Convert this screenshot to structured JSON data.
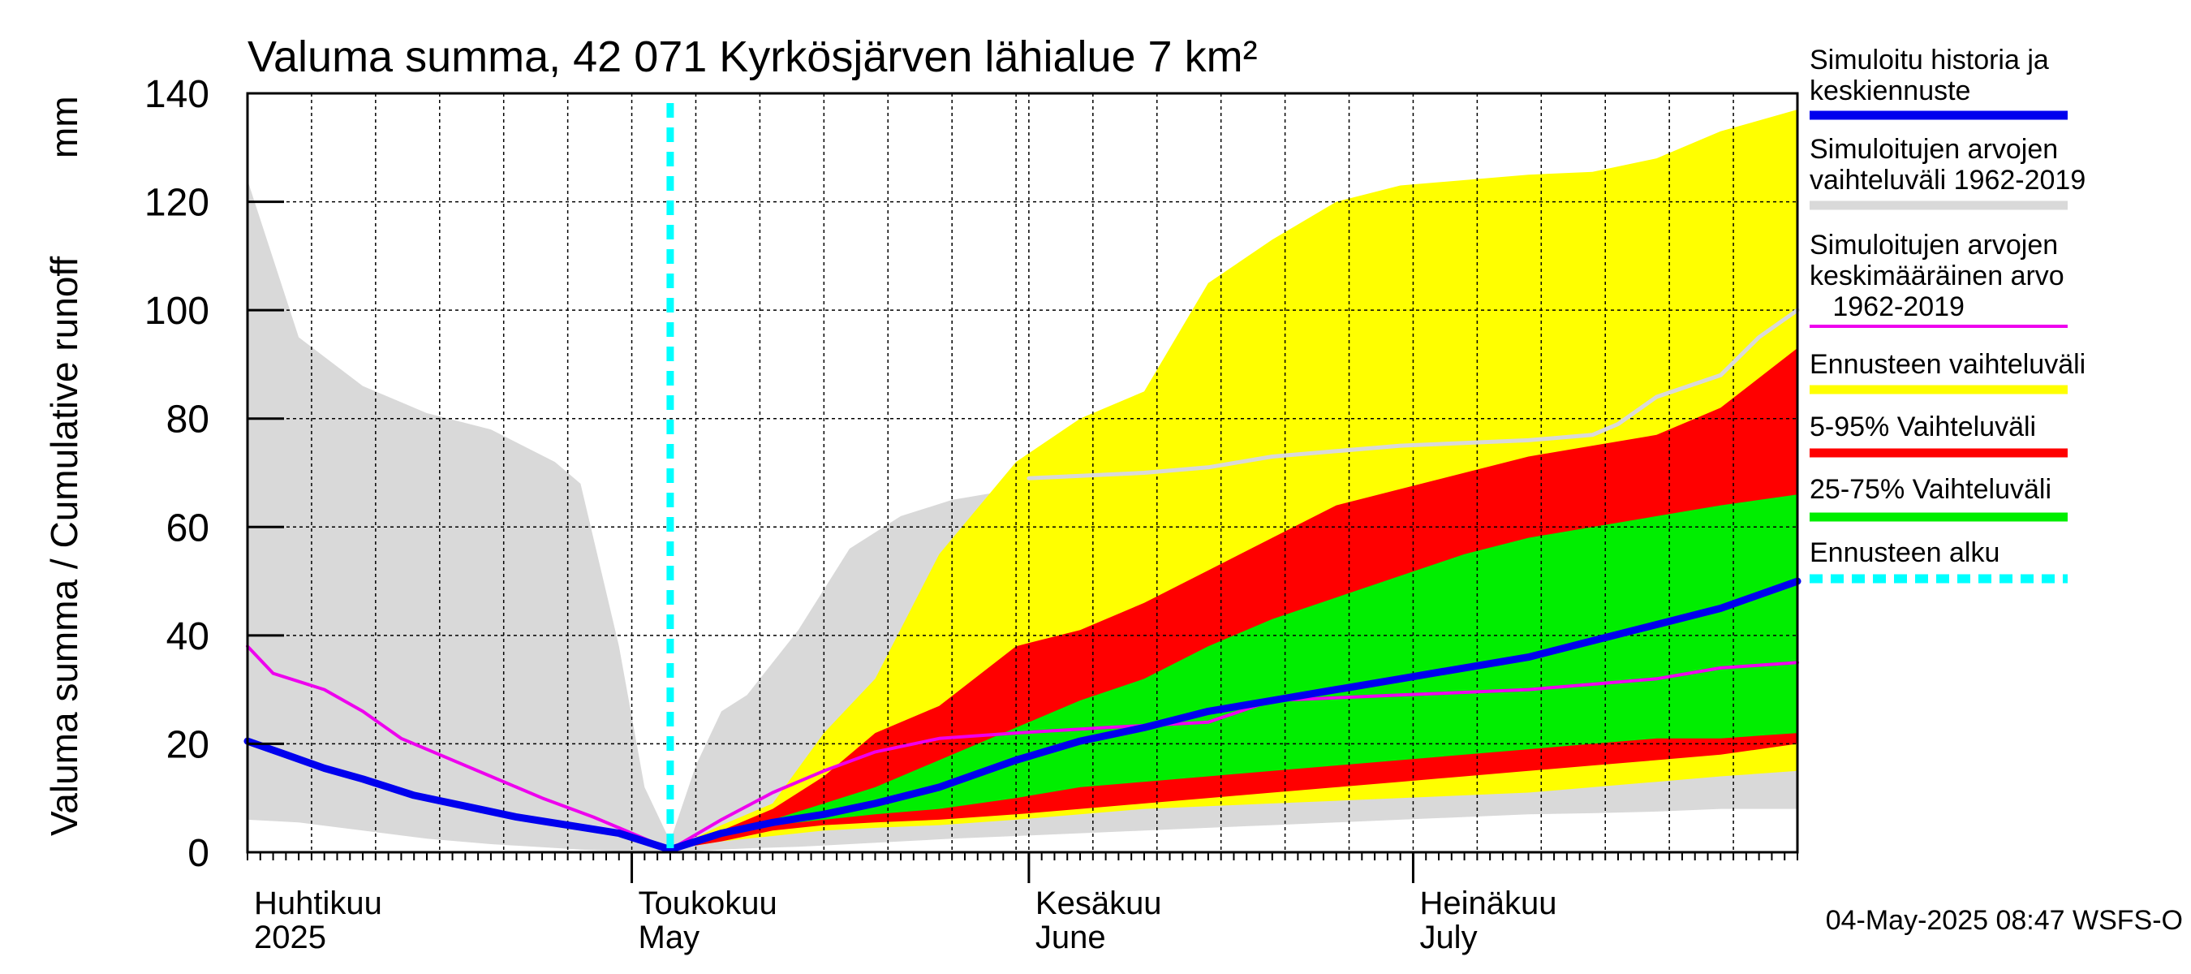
{
  "chart_data": {
    "type": "area",
    "title": "Valuma summa, 42 071 Kyrkösjärven lähialue 7 km²",
    "ylabel": "Valuma summa / Cumulative runoff",
    "yunit": "mm",
    "ylim": [
      0,
      140
    ],
    "yticks": [
      0,
      20,
      40,
      60,
      80,
      100,
      120,
      140
    ],
    "xlim": [
      "2025-04-01",
      "2025-07-31"
    ],
    "grid": true,
    "legend_position": "right",
    "x_axis_year": "2025",
    "months": [
      {
        "fi": "Huhtikuu",
        "en": "2025",
        "start": "2025-04-01"
      },
      {
        "fi": "Toukokuu",
        "en": "May",
        "start": "2025-05-01"
      },
      {
        "fi": "Kesäkuu",
        "en": "June",
        "start": "2025-06-01"
      },
      {
        "fi": "Heinäkuu",
        "en": "July",
        "start": "2025-07-01"
      }
    ],
    "forecast_start": "2025-05-04",
    "footer": "04-May-2025 08:47 WSFS-O",
    "colors": {
      "history_range": "#d9d9d9",
      "mean": "#ee00ee",
      "forecast_range": "#ffff00",
      "p5_95": "#ff0000",
      "p25_75": "#00ee00",
      "median": "#0000ee",
      "mean_continuation": "#d9d9d9",
      "forecast_start": "#00ffff"
    },
    "legend": [
      {
        "label": "Simuloitu historia ja\nkeskiennuste",
        "color": "#0000ee",
        "style": "solid"
      },
      {
        "label": "Simuloitujen arvojen\nvaihteluväli 1962-2019",
        "color": "#d9d9d9",
        "style": "solid"
      },
      {
        "label": "Simuloitujen arvojen\nkeskimääräinen arvo\n   1962-2019",
        "color": "#ee00ee",
        "style": "thin"
      },
      {
        "label": "Ennusteen vaihteluväli",
        "color": "#ffff00",
        "style": "solid"
      },
      {
        "label": "5-95% Vaihteluväli",
        "color": "#ff0000",
        "style": "solid"
      },
      {
        "label": "25-75% Vaihteluväli",
        "color": "#00ee00",
        "style": "solid"
      },
      {
        "label": "Ennusteen alku",
        "color": "#00ffff",
        "style": "dashed"
      }
    ],
    "series": {
      "history_range": {
        "x": [
          "2025-04-01",
          "2025-04-05",
          "2025-04-10",
          "2025-04-15",
          "2025-04-20",
          "2025-04-25",
          "2025-04-27",
          "2025-04-30",
          "2025-05-02",
          "2025-05-04",
          "2025-05-06",
          "2025-05-08",
          "2025-05-10",
          "2025-05-14",
          "2025-05-18",
          "2025-05-22",
          "2025-05-26",
          "2025-05-31",
          "2025-06-05",
          "2025-06-10",
          "2025-06-15",
          "2025-06-20",
          "2025-06-25",
          "2025-06-30",
          "2025-07-05",
          "2025-07-10",
          "2025-07-15",
          "2025-07-20",
          "2025-07-25",
          "2025-07-31"
        ],
        "upper": [
          124,
          95,
          86,
          81,
          78,
          72,
          68,
          38,
          12,
          2,
          16,
          26,
          29,
          41,
          56,
          62,
          65,
          67,
          68,
          69,
          70,
          71,
          72,
          73,
          74,
          75,
          75.5,
          76,
          77,
          78
        ],
        "lower": [
          6,
          5.5,
          4,
          2.5,
          1.5,
          0.8,
          0.5,
          0.2,
          0.1,
          0,
          0.2,
          0.5,
          0.7,
          1,
          1.5,
          2,
          2.5,
          3,
          3.5,
          4,
          4.5,
          5,
          5.5,
          6,
          6.5,
          7,
          7.2,
          7.5,
          8,
          8
        ]
      },
      "mean": {
        "x": [
          "2025-04-01",
          "2025-04-03",
          "2025-04-07",
          "2025-04-10",
          "2025-04-13",
          "2025-04-16",
          "2025-04-20",
          "2025-04-24",
          "2025-04-28",
          "2025-05-01",
          "2025-05-04",
          "2025-05-08",
          "2025-05-12",
          "2025-05-16",
          "2025-05-20",
          "2025-05-25",
          "2025-05-31",
          "2025-06-07",
          "2025-06-15",
          "2025-06-20",
          "2025-06-25",
          "2025-06-30",
          "2025-07-05",
          "2025-07-10",
          "2025-07-15",
          "2025-07-20",
          "2025-07-25",
          "2025-07-31"
        ],
        "y": [
          38,
          33,
          30,
          26,
          21,
          18,
          14,
          10,
          6.5,
          3.5,
          0.5,
          6,
          11,
          15,
          18.5,
          21,
          22,
          23,
          24,
          28,
          28.5,
          29,
          29.5,
          30,
          31,
          32,
          34,
          35
        ]
      },
      "mean_continuation": {
        "x": [
          "2025-06-01",
          "2025-06-10",
          "2025-06-15",
          "2025-06-20",
          "2025-06-25",
          "2025-06-30",
          "2025-07-05",
          "2025-07-10",
          "2025-07-15",
          "2025-07-17",
          "2025-07-20",
          "2025-07-25",
          "2025-07-28",
          "2025-07-31"
        ],
        "y": [
          69,
          70,
          71,
          73,
          74,
          75,
          75.5,
          76,
          77,
          79,
          84,
          88,
          95,
          100
        ]
      },
      "forecast_range": {
        "x": [
          "2025-05-04",
          "2025-05-08",
          "2025-05-12",
          "2025-05-16",
          "2025-05-20",
          "2025-05-25",
          "2025-05-31",
          "2025-06-05",
          "2025-06-10",
          "2025-06-15",
          "2025-06-20",
          "2025-06-25",
          "2025-06-30",
          "2025-07-05",
          "2025-07-10",
          "2025-07-15",
          "2025-07-20",
          "2025-07-25",
          "2025-07-31"
        ],
        "upper": [
          0.5,
          5,
          9,
          22,
          32,
          55,
          72,
          80,
          85,
          105,
          113,
          120,
          123,
          124,
          125,
          125.5,
          128,
          133,
          137
        ],
        "lower": [
          0.5,
          2,
          3,
          4,
          4.5,
          5,
          6,
          7,
          8,
          8.5,
          9,
          9.5,
          10,
          10.5,
          11,
          12,
          13,
          14,
          15
        ]
      },
      "p5_95": {
        "x": [
          "2025-05-04",
          "2025-05-08",
          "2025-05-12",
          "2025-05-16",
          "2025-05-20",
          "2025-05-25",
          "2025-05-31",
          "2025-06-05",
          "2025-06-10",
          "2025-06-15",
          "2025-06-20",
          "2025-06-25",
          "2025-06-30",
          "2025-07-05",
          "2025-07-10",
          "2025-07-15",
          "2025-07-20",
          "2025-07-25",
          "2025-07-31"
        ],
        "upper": [
          0.5,
          4,
          8,
          14,
          22,
          27,
          38,
          41,
          46,
          52,
          58,
          64,
          67,
          70,
          73,
          75,
          77,
          82,
          93
        ],
        "lower": [
          0.5,
          2,
          4,
          5,
          5.5,
          6,
          7,
          8,
          9,
          10,
          11,
          12,
          13,
          14,
          15,
          16,
          17,
          18,
          20
        ]
      },
      "p25_75": {
        "x": [
          "2025-05-04",
          "2025-05-08",
          "2025-05-12",
          "2025-05-16",
          "2025-05-20",
          "2025-05-25",
          "2025-05-31",
          "2025-06-05",
          "2025-06-10",
          "2025-06-15",
          "2025-06-20",
          "2025-06-25",
          "2025-06-30",
          "2025-07-05",
          "2025-07-10",
          "2025-07-15",
          "2025-07-20",
          "2025-07-25",
          "2025-07-31"
        ],
        "upper": [
          0.5,
          4,
          6,
          9,
          12,
          17,
          23,
          28,
          32,
          38,
          43,
          47,
          51,
          55,
          58,
          60,
          62,
          64,
          66
        ],
        "lower": [
          0.5,
          3,
          5,
          6,
          7,
          8,
          10,
          12,
          13,
          14,
          15,
          16,
          17,
          18,
          19,
          20,
          21,
          21,
          22
        ]
      },
      "median": {
        "x": [
          "2025-04-01",
          "2025-04-04",
          "2025-04-07",
          "2025-04-10",
          "2025-04-14",
          "2025-04-18",
          "2025-04-22",
          "2025-04-26",
          "2025-04-30",
          "2025-05-04",
          "2025-05-08",
          "2025-05-12",
          "2025-05-16",
          "2025-05-20",
          "2025-05-25",
          "2025-05-31",
          "2025-06-05",
          "2025-06-10",
          "2025-06-15",
          "2025-06-20",
          "2025-06-25",
          "2025-06-30",
          "2025-07-05",
          "2025-07-10",
          "2025-07-15",
          "2025-07-20",
          "2025-07-25",
          "2025-07-31"
        ],
        "y": [
          20.5,
          18,
          15.5,
          13.5,
          10.5,
          8.5,
          6.5,
          5,
          3.5,
          0.5,
          3.5,
          5.5,
          7,
          9,
          12,
          17,
          20.5,
          23,
          26,
          28,
          30,
          32,
          34,
          36,
          39,
          42,
          45,
          50
        ]
      }
    }
  }
}
